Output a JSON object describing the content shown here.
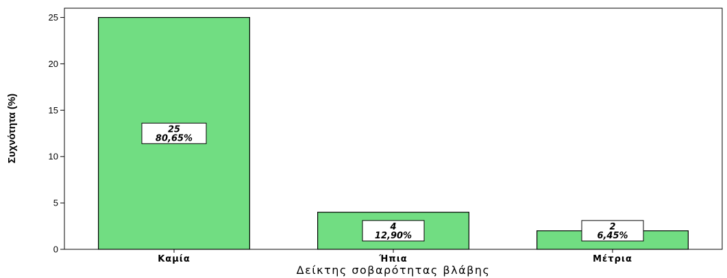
{
  "chart_data": {
    "type": "bar",
    "categories": [
      "Καμία",
      "Ήπια",
      "Μέτρια"
    ],
    "values": [
      25,
      4,
      2
    ],
    "data_labels": [
      [
        "25",
        "80,65%"
      ],
      [
        "4",
        "12,90%"
      ],
      [
        "2",
        "6,45%"
      ]
    ],
    "xlabel": "Δείκτης σοβαρότητας βλάβης",
    "ylabel": "Συχνότητα (%)",
    "ylim": [
      0,
      26
    ],
    "yticks": [
      0,
      5,
      10,
      15,
      20,
      25
    ],
    "grid": false,
    "bar_color": "#71dd82",
    "bar_edge_color": "#000000"
  }
}
